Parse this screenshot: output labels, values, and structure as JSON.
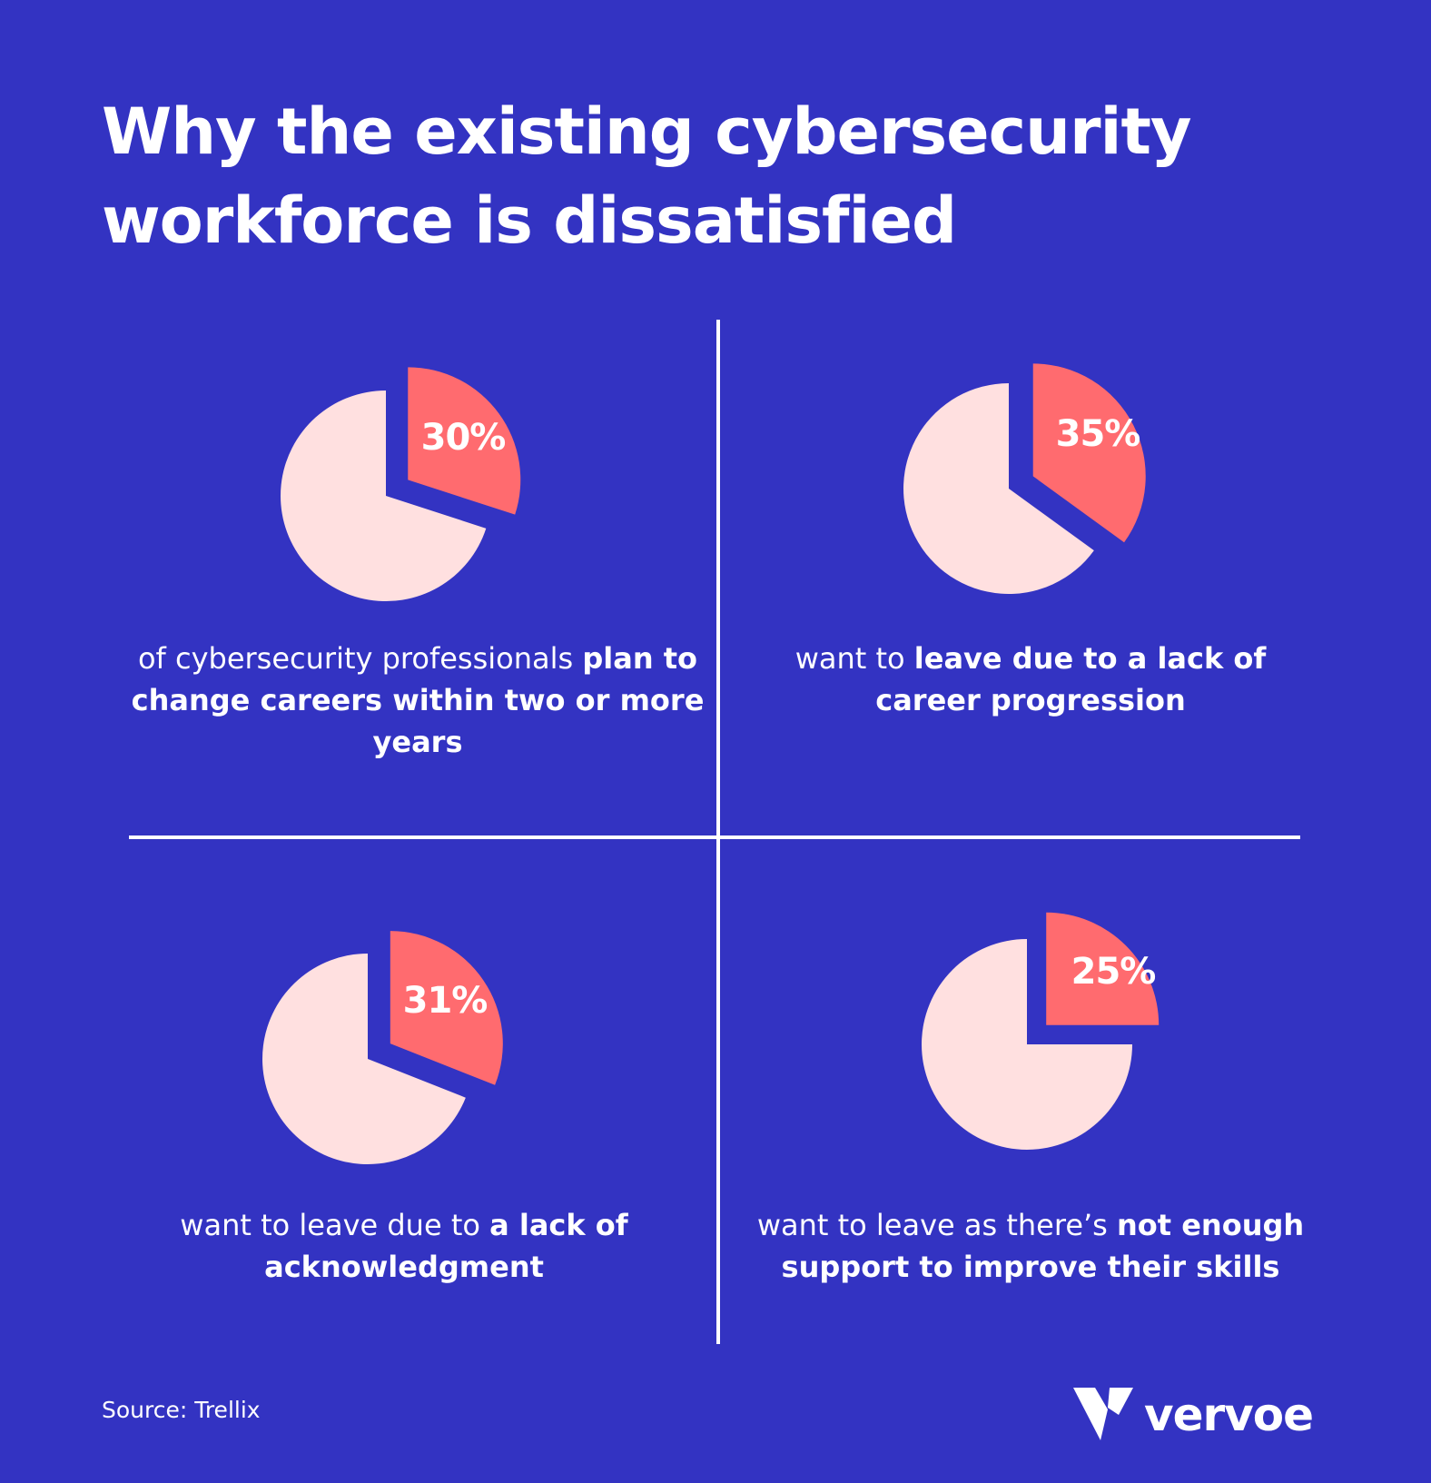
{
  "title": "Why the existing cybersecurity workforce is dissatisfied",
  "colors": {
    "background": "#3333c2",
    "highlight": "#ff6b6f",
    "remainder": "#ffe0e0",
    "text": "#ffffff"
  },
  "chart_data": [
    {
      "type": "pie",
      "values": [
        30,
        70
      ],
      "label": "30%",
      "caption": {
        "regular_before": "of cybersecurity professionals",
        "bold": "plan to change careers within two or more years",
        "regular_after": ""
      }
    },
    {
      "type": "pie",
      "values": [
        35,
        65
      ],
      "label": "35%",
      "caption": {
        "regular_before": "want to",
        "bold": "leave due to a lack of career progression",
        "regular_after": ""
      }
    },
    {
      "type": "pie",
      "values": [
        31,
        69
      ],
      "label": "31%",
      "caption": {
        "regular_before": "want to leave due to",
        "bold": "a lack of acknowledgment",
        "regular_after": ""
      }
    },
    {
      "type": "pie",
      "values": [
        25,
        75
      ],
      "label": "25%",
      "caption": {
        "regular_before": "want to leave as there’s",
        "bold": "not enough support to improve their skills",
        "regular_after": ""
      }
    }
  ],
  "footer": {
    "source": "Source: Trellix",
    "brand": "vervoe",
    "brand_icon": "vervoe-v-logo-icon"
  }
}
